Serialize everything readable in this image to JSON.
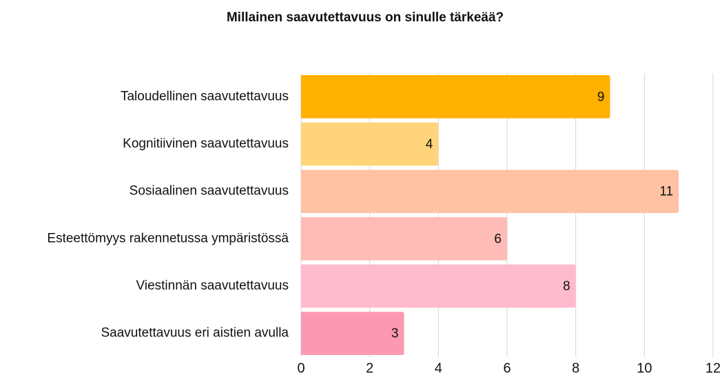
{
  "chart_data": {
    "type": "bar",
    "orientation": "horizontal",
    "title": "Millainen saavutettavuus on sinulle tärkeää?",
    "categories": [
      "Taloudellinen saavutettavuus",
      "Kognitiivinen saavutettavuus",
      "Sosiaalinen saavutettavuus",
      "Esteettömyys rakennetussa ympäristössä",
      "Viestinnän saavutettavuus",
      "Saavutettavuus eri aistien avulla"
    ],
    "values": [
      9,
      4,
      11,
      6,
      8,
      3
    ],
    "colors": [
      "#ffb000",
      "#ffd47a",
      "#ffc2a3",
      "#ffbbb5",
      "#ffbbce",
      "#fc98b2"
    ],
    "xlim": [
      0,
      12
    ],
    "xticks": [
      0,
      2,
      4,
      6,
      8,
      10,
      12
    ],
    "grid": true
  }
}
